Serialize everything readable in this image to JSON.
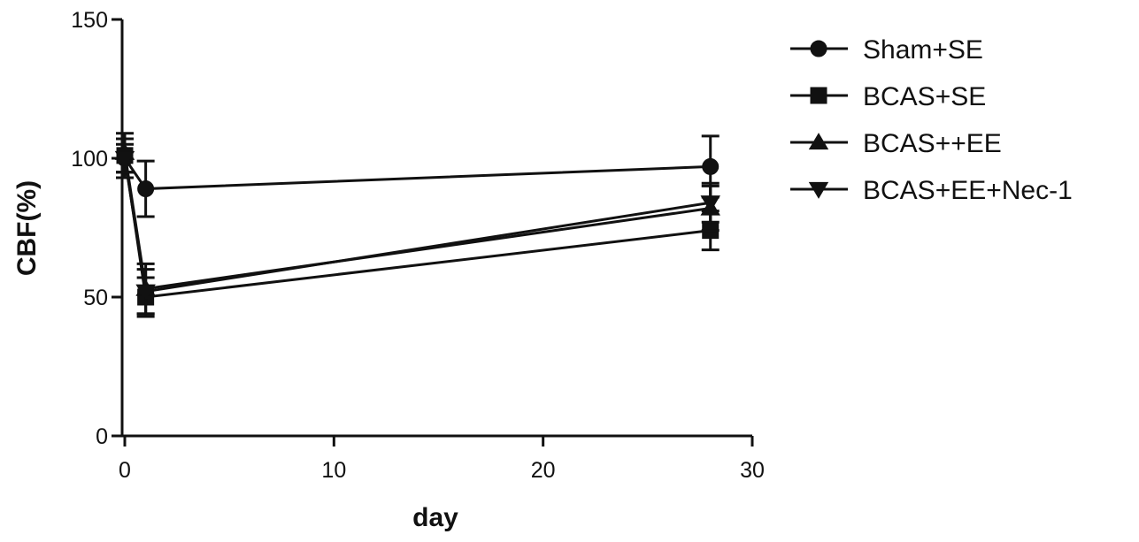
{
  "chart_data": {
    "type": "line",
    "title": "",
    "xlabel": "day",
    "ylabel": "CBF(%)",
    "xlim": [
      0,
      30
    ],
    "ylim": [
      0,
      150
    ],
    "xticks": [
      0,
      10,
      20,
      30
    ],
    "yticks": [
      0,
      50,
      100,
      150
    ],
    "grid": false,
    "legend_position": "top-right",
    "series": [
      {
        "name": "Sham+SE",
        "marker": "circle",
        "x": [
          0,
          1,
          28
        ],
        "y": [
          100,
          89,
          97
        ],
        "err": [
          7,
          10,
          11
        ]
      },
      {
        "name": "BCAS+SE",
        "marker": "square",
        "x": [
          0,
          1,
          28
        ],
        "y": [
          101,
          50,
          74
        ],
        "err": [
          6,
          7,
          7
        ]
      },
      {
        "name": "BCAS++EE",
        "marker": "triangle-up",
        "x": [
          0,
          1,
          28
        ],
        "y": [
          102,
          53,
          82
        ],
        "err": [
          7,
          9,
          8
        ]
      },
      {
        "name": "BCAS+EE+Nec-1",
        "marker": "triangle-down",
        "x": [
          0,
          1,
          28
        ],
        "y": [
          100,
          52,
          84
        ],
        "err": [
          5,
          8,
          7
        ]
      }
    ]
  }
}
